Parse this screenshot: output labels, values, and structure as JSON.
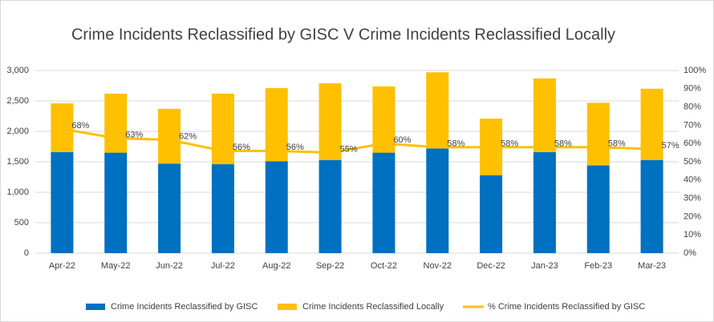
{
  "chart_data": {
    "type": "bar",
    "stacked": true,
    "title": "Crime Incidents Reclassified by GISC V Crime Incidents Reclassified Locally",
    "categories": [
      "Apr-22",
      "May-22",
      "Jun-22",
      "Jul-22",
      "Aug-22",
      "Sep-22",
      "Oct-22",
      "Nov-22",
      "Dec-22",
      "Jan-23",
      "Feb-23",
      "Mar-23"
    ],
    "series": [
      {
        "name": "Crime Incidents Reclassified by GISC",
        "color": "#0070c0",
        "type": "bar",
        "values": [
          1660,
          1650,
          1470,
          1460,
          1510,
          1530,
          1650,
          1720,
          1280,
          1660,
          1440,
          1530
        ]
      },
      {
        "name": "Crime Incidents Reclassified Locally",
        "color": "#ffc000",
        "type": "bar",
        "values": [
          800,
          970,
          900,
          1160,
          1200,
          1260,
          1090,
          1250,
          930,
          1210,
          1030,
          1170
        ]
      },
      {
        "name": "% Crime Incidents Reclassified by GISC",
        "color": "#ffc000",
        "type": "line",
        "axis": "y2",
        "values": [
          68,
          63,
          62,
          56,
          56,
          55,
          60,
          58,
          58,
          58,
          58,
          57
        ],
        "value_labels": [
          "68%",
          "63%",
          "62%",
          "56%",
          "56%",
          "55%",
          "60%",
          "58%",
          "58%",
          "58%",
          "58%",
          "57%"
        ]
      }
    ],
    "ylim": [
      0,
      3000
    ],
    "yticks": [
      0,
      500,
      {
        "value": 1000,
        "label": "1,000"
      },
      {
        "value": 1500,
        "label": "1,500"
      },
      {
        "value": 2000,
        "label": "2,000"
      },
      {
        "value": 2500,
        "label": "2,500"
      },
      {
        "value": 3000,
        "label": "3,000"
      }
    ],
    "y2lim": [
      0,
      100
    ],
    "y2ticks": [
      {
        "value": 0,
        "label": "0%"
      },
      {
        "value": 10,
        "label": "10%"
      },
      {
        "value": 20,
        "label": "20%"
      },
      {
        "value": 30,
        "label": "30%"
      },
      {
        "value": 40,
        "label": "40%"
      },
      {
        "value": 50,
        "label": "50%"
      },
      {
        "value": 60,
        "label": "60%"
      },
      {
        "value": 70,
        "label": "70%"
      },
      {
        "value": 80,
        "label": "80%"
      },
      {
        "value": 90,
        "label": "90%"
      },
      {
        "value": 100,
        "label": "100%"
      }
    ],
    "grid": true,
    "legend": "bottom"
  }
}
